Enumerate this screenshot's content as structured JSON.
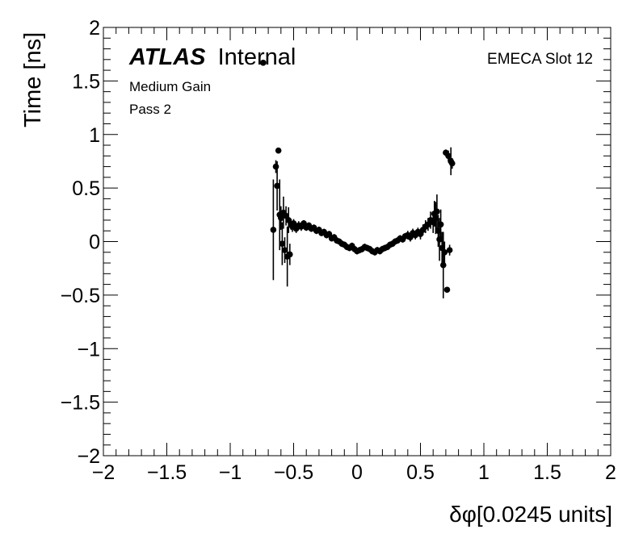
{
  "chart_data": {
    "type": "scatter",
    "title": "",
    "xlabel": "δφ[0.0245 units]",
    "ylabel": "Time [ns]",
    "xlim": [
      -2,
      2
    ],
    "ylim": [
      -2,
      2
    ],
    "xticks": [
      -2,
      -1.5,
      -1,
      -0.5,
      0,
      0.5,
      1,
      1.5,
      2
    ],
    "yticks": [
      -2,
      -1.5,
      -1,
      -0.5,
      0,
      0.5,
      1,
      1.5,
      2
    ],
    "xtick_labels": [
      "−2",
      "−1.5",
      "−1",
      "−0.5",
      "0",
      "0.5",
      "1",
      "1.5",
      "2"
    ],
    "ytick_labels": [
      "−2",
      "−1.5",
      "−1",
      "−0.5",
      "0",
      "0.5",
      "1",
      "1.5",
      "2"
    ],
    "grid": false,
    "marker_color": "#000000",
    "series": [
      {
        "points": [
          {
            "x": -0.74,
            "y": 1.67,
            "err": 0.0
          },
          {
            "x": -0.66,
            "y": 0.11,
            "err": 0.47
          },
          {
            "x": -0.64,
            "y": 0.7,
            "err": 0.06
          },
          {
            "x": -0.63,
            "y": 0.52,
            "err": 0.23
          },
          {
            "x": -0.62,
            "y": 0.85,
            "err": 0.02
          },
          {
            "x": -0.61,
            "y": 0.25,
            "err": 0.33
          },
          {
            "x": -0.6,
            "y": 0.22,
            "err": 0.11
          },
          {
            "x": -0.59,
            "y": -0.02,
            "err": 0.2
          },
          {
            "x": -0.58,
            "y": 0.27,
            "err": 0.15
          },
          {
            "x": -0.57,
            "y": -0.08,
            "err": 0.12
          },
          {
            "x": -0.56,
            "y": 0.24,
            "err": 0.09
          },
          {
            "x": -0.55,
            "y": -0.14,
            "err": 0.28
          },
          {
            "x": -0.54,
            "y": 0.2,
            "err": 0.12
          },
          {
            "x": -0.53,
            "y": -0.12,
            "err": 0.1
          },
          {
            "x": -0.52,
            "y": 0.16,
            "err": 0.05
          },
          {
            "x": -0.51,
            "y": 0.14,
            "err": 0.05
          },
          {
            "x": -0.5,
            "y": 0.17,
            "err": 0.04
          },
          {
            "x": -0.48,
            "y": 0.12,
            "err": 0.04
          },
          {
            "x": -0.46,
            "y": 0.15,
            "err": 0.04
          },
          {
            "x": -0.44,
            "y": 0.14,
            "err": 0.04
          },
          {
            "x": -0.42,
            "y": 0.17,
            "err": 0.03
          },
          {
            "x": -0.4,
            "y": 0.13,
            "err": 0.03
          },
          {
            "x": -0.38,
            "y": 0.15,
            "err": 0.03
          },
          {
            "x": -0.36,
            "y": 0.12,
            "err": 0.03
          },
          {
            "x": -0.34,
            "y": 0.13,
            "err": 0.03
          },
          {
            "x": -0.32,
            "y": 0.1,
            "err": 0.03
          },
          {
            "x": -0.3,
            "y": 0.11,
            "err": 0.03
          },
          {
            "x": -0.28,
            "y": 0.08,
            "err": 0.03
          },
          {
            "x": -0.26,
            "y": 0.09,
            "err": 0.03
          },
          {
            "x": -0.24,
            "y": 0.06,
            "err": 0.03
          },
          {
            "x": -0.22,
            "y": 0.07,
            "err": 0.03
          },
          {
            "x": -0.2,
            "y": 0.03,
            "err": 0.03
          },
          {
            "x": -0.18,
            "y": 0.04,
            "err": 0.03
          },
          {
            "x": -0.16,
            "y": 0.01,
            "err": 0.03
          },
          {
            "x": -0.14,
            "y": 0.0,
            "err": 0.03
          },
          {
            "x": -0.12,
            "y": -0.02,
            "err": 0.03
          },
          {
            "x": -0.1,
            "y": -0.03,
            "err": 0.03
          },
          {
            "x": -0.08,
            "y": -0.05,
            "err": 0.03
          },
          {
            "x": -0.06,
            "y": -0.06,
            "err": 0.03
          },
          {
            "x": -0.04,
            "y": -0.04,
            "err": 0.03
          },
          {
            "x": -0.02,
            "y": -0.07,
            "err": 0.03
          },
          {
            "x": 0.0,
            "y": -0.09,
            "err": 0.03
          },
          {
            "x": 0.02,
            "y": -0.08,
            "err": 0.03
          },
          {
            "x": 0.04,
            "y": -0.07,
            "err": 0.03
          },
          {
            "x": 0.06,
            "y": -0.05,
            "err": 0.03
          },
          {
            "x": 0.08,
            "y": -0.06,
            "err": 0.03
          },
          {
            "x": 0.1,
            "y": -0.07,
            "err": 0.03
          },
          {
            "x": 0.12,
            "y": -0.09,
            "err": 0.03
          },
          {
            "x": 0.14,
            "y": -0.1,
            "err": 0.03
          },
          {
            "x": 0.16,
            "y": -0.08,
            "err": 0.03
          },
          {
            "x": 0.18,
            "y": -0.09,
            "err": 0.03
          },
          {
            "x": 0.2,
            "y": -0.07,
            "err": 0.03
          },
          {
            "x": 0.22,
            "y": -0.06,
            "err": 0.03
          },
          {
            "x": 0.24,
            "y": -0.05,
            "err": 0.03
          },
          {
            "x": 0.26,
            "y": -0.03,
            "err": 0.03
          },
          {
            "x": 0.28,
            "y": -0.02,
            "err": 0.03
          },
          {
            "x": 0.3,
            "y": 0.0,
            "err": 0.03
          },
          {
            "x": 0.32,
            "y": 0.01,
            "err": 0.03
          },
          {
            "x": 0.34,
            "y": 0.03,
            "err": 0.03
          },
          {
            "x": 0.36,
            "y": 0.02,
            "err": 0.03
          },
          {
            "x": 0.38,
            "y": 0.05,
            "err": 0.03
          },
          {
            "x": 0.4,
            "y": 0.06,
            "err": 0.04
          },
          {
            "x": 0.42,
            "y": 0.04,
            "err": 0.04
          },
          {
            "x": 0.44,
            "y": 0.08,
            "err": 0.04
          },
          {
            "x": 0.46,
            "y": 0.06,
            "err": 0.04
          },
          {
            "x": 0.48,
            "y": 0.09,
            "err": 0.04
          },
          {
            "x": 0.5,
            "y": 0.07,
            "err": 0.05
          },
          {
            "x": 0.52,
            "y": 0.11,
            "err": 0.05
          },
          {
            "x": 0.54,
            "y": 0.14,
            "err": 0.06
          },
          {
            "x": 0.56,
            "y": 0.16,
            "err": 0.06
          },
          {
            "x": 0.58,
            "y": 0.2,
            "err": 0.08
          },
          {
            "x": 0.6,
            "y": 0.18,
            "err": 0.1
          },
          {
            "x": 0.61,
            "y": 0.26,
            "err": 0.12
          },
          {
            "x": 0.62,
            "y": 0.22,
            "err": 0.15
          },
          {
            "x": 0.63,
            "y": 0.28,
            "err": 0.16
          },
          {
            "x": 0.64,
            "y": 0.1,
            "err": 0.15
          },
          {
            "x": 0.65,
            "y": 0.02,
            "err": 0.2
          },
          {
            "x": 0.66,
            "y": 0.16,
            "err": 0.14
          },
          {
            "x": 0.67,
            "y": -0.06,
            "err": 0.15
          },
          {
            "x": 0.68,
            "y": -0.22,
            "err": 0.31
          },
          {
            "x": 0.69,
            "y": -0.1,
            "err": 0.1
          },
          {
            "x": 0.7,
            "y": 0.83,
            "err": 0.03
          },
          {
            "x": 0.71,
            "y": -0.45,
            "err": 0.02
          },
          {
            "x": 0.72,
            "y": 0.8,
            "err": 0.05
          },
          {
            "x": 0.73,
            "y": -0.08,
            "err": 0.05
          },
          {
            "x": 0.74,
            "y": 0.75,
            "err": 0.13
          },
          {
            "x": 0.75,
            "y": 0.73,
            "err": 0.05
          }
        ]
      }
    ]
  },
  "labels": {
    "atlas": "ATLAS",
    "internal": "Internal",
    "line1": "Medium Gain",
    "line2": "Pass 2",
    "slot": "EMECA Slot 12"
  }
}
